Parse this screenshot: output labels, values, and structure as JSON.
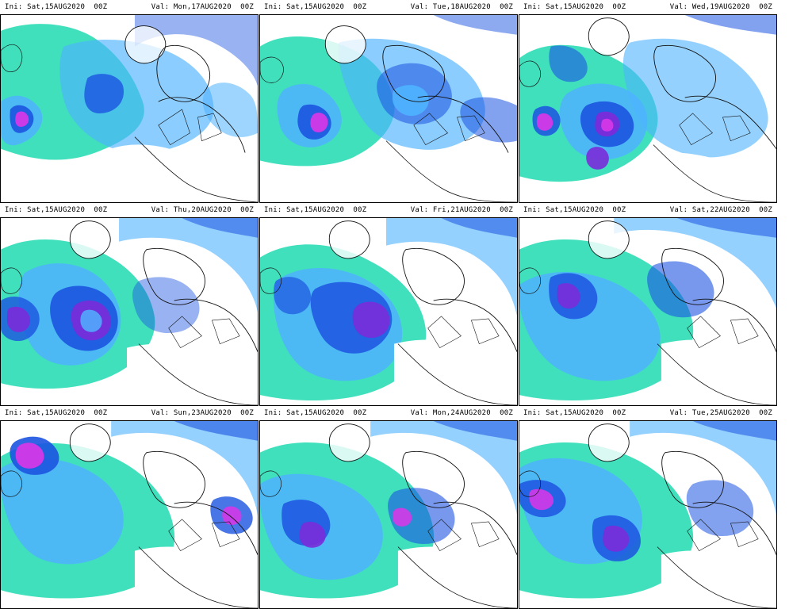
{
  "colors": {
    "cyan": "#00d6a7",
    "lightblue": "#4fb2ff",
    "blue": "#1c54e0",
    "purple": "#7a2bd9",
    "magenta": "#d438e7",
    "land": "#ffffff",
    "coast": "#111111"
  },
  "panels": [
    {
      "ini": "Ini: Sat,15AUG2020  00Z",
      "val": "Val: Mon,17AUG2020  00Z"
    },
    {
      "ini": "Ini: Sat,15AUG2020  00Z",
      "val": "Val: Tue,18AUG2020  00Z"
    },
    {
      "ini": "Ini: Sat,15AUG2020  00Z",
      "val": "Val: Wed,19AUG2020  00Z"
    },
    {
      "ini": "Ini: Sat,15AUG2020  00Z",
      "val": "Val: Thu,20AUG2020  00Z"
    },
    {
      "ini": "Ini: Sat,15AUG2020  00Z",
      "val": "Val: Fri,21AUG2020  00Z"
    },
    {
      "ini": "Ini: Sat,15AUG2020  00Z",
      "val": "Val: Sat,22AUG2020  00Z"
    },
    {
      "ini": "Ini: Sat,15AUG2020  00Z",
      "val": "Val: Sun,23AUG2020  00Z"
    },
    {
      "ini": "Ini: Sat,15AUG2020  00Z",
      "val": "Val: Mon,24AUG2020  00Z"
    },
    {
      "ini": "Ini: Sat,15AUG2020  00Z",
      "val": "Val: Tue,25AUG2020  00Z"
    }
  ]
}
